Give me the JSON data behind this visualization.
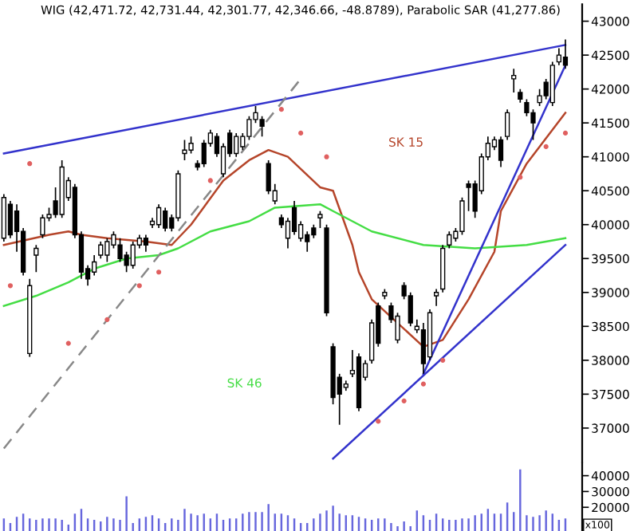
{
  "chart_data": [
    {
      "type": "candlestick",
      "title": "WIG (42,471.72, 42,731.44, 42,301.77, 42,346.66, -48.8789), Parabolic SAR (41,277.86)",
      "categories": [
        null,
        null,
        null,
        null,
        null,
        null,
        null,
        null,
        null,
        null,
        null,
        null,
        null,
        null,
        null,
        null,
        null,
        null,
        null,
        null,
        null,
        null,
        null,
        null,
        null,
        null,
        null,
        null,
        null,
        null,
        null,
        null,
        null,
        null,
        null,
        null,
        null,
        null,
        null,
        null,
        null,
        null,
        null,
        null,
        null,
        null,
        null,
        null,
        null,
        null,
        null,
        null,
        null,
        null,
        null,
        null,
        null,
        null,
        null,
        null,
        null,
        null,
        null,
        null,
        null,
        null,
        null,
        null,
        null,
        null,
        null,
        null,
        null,
        null,
        null,
        null,
        null,
        null,
        null,
        null,
        null,
        null,
        null,
        null,
        null,
        null,
        null,
        null
      ],
      "ohlc": [
        [
          39800,
          40450,
          39750,
          40400
        ],
        [
          40300,
          40350,
          39800,
          39850
        ],
        [
          40200,
          40300,
          39600,
          39900
        ],
        [
          39900,
          39950,
          39250,
          39300
        ],
        [
          38100,
          39200,
          38050,
          39100
        ],
        [
          39550,
          39700,
          39300,
          39650
        ],
        [
          39850,
          40150,
          39800,
          40100
        ],
        [
          40100,
          40250,
          40050,
          40150
        ],
        [
          40350,
          40550,
          40100,
          40150
        ],
        [
          40150,
          40950,
          40100,
          40850
        ],
        [
          40400,
          40700,
          40350,
          40650
        ],
        [
          40550,
          40600,
          39800,
          39850
        ],
        [
          39850,
          39900,
          39200,
          39300
        ],
        [
          39350,
          39400,
          39100,
          39200
        ],
        [
          39300,
          39550,
          39250,
          39450
        ],
        [
          39550,
          39750,
          39500,
          39700
        ],
        [
          39550,
          39800,
          39450,
          39750
        ],
        [
          39700,
          39900,
          39650,
          39850
        ],
        [
          39700,
          39800,
          39450,
          39500
        ],
        [
          39550,
          39600,
          39300,
          39400
        ],
        [
          39400,
          39750,
          39350,
          39700
        ],
        [
          39700,
          39850,
          39650,
          39800
        ],
        [
          39800,
          39850,
          39600,
          39700
        ],
        [
          40000,
          40100,
          39950,
          40050
        ],
        [
          40000,
          40300,
          39950,
          40250
        ],
        [
          40200,
          40250,
          39900,
          39950
        ],
        [
          40100,
          40150,
          39900,
          39950
        ],
        [
          40100,
          40800,
          40050,
          40750
        ],
        [
          41050,
          41250,
          40950,
          41100
        ],
        [
          41100,
          41300,
          41050,
          41200
        ],
        [
          40900,
          40950,
          40800,
          40850
        ],
        [
          41200,
          41250,
          40850,
          40900
        ],
        [
          41200,
          41400,
          41150,
          41350
        ],
        [
          41300,
          41350,
          41000,
          41050
        ],
        [
          40750,
          41200,
          40700,
          41150
        ],
        [
          41350,
          41400,
          41000,
          41050
        ],
        [
          41050,
          41350,
          41000,
          41300
        ],
        [
          41150,
          41350,
          41100,
          41300
        ],
        [
          41300,
          41600,
          41250,
          41550
        ],
        [
          41550,
          41750,
          41500,
          41650
        ],
        [
          41550,
          41600,
          41300,
          41450
        ],
        [
          40900,
          40950,
          40450,
          40500
        ],
        [
          40350,
          40600,
          40300,
          40500
        ],
        [
          40100,
          40150,
          39950,
          40000
        ],
        [
          39800,
          40100,
          39650,
          40050
        ],
        [
          40250,
          40350,
          39850,
          39900
        ],
        [
          39800,
          40050,
          39750,
          40000
        ],
        [
          39850,
          39900,
          39600,
          39750
        ],
        [
          39950,
          40000,
          39800,
          39850
        ],
        [
          40100,
          40200,
          39950,
          40150
        ],
        [
          39950,
          40000,
          38650,
          38700
        ],
        [
          38200,
          38250,
          37350,
          37450
        ],
        [
          37750,
          37800,
          37050,
          37500
        ],
        [
          37600,
          37700,
          37550,
          37650
        ],
        [
          37800,
          38150,
          37750,
          37850
        ],
        [
          38050,
          38100,
          37250,
          37300
        ],
        [
          37750,
          38000,
          37700,
          37950
        ],
        [
          38000,
          38600,
          37950,
          38550
        ],
        [
          38800,
          38850,
          38200,
          38250
        ],
        [
          38950,
          39050,
          38900,
          39000
        ],
        [
          38800,
          38850,
          38550,
          38600
        ],
        [
          38300,
          38700,
          38250,
          38650
        ],
        [
          39100,
          39150,
          38900,
          38950
        ],
        [
          38950,
          39000,
          38500,
          38550
        ],
        [
          38450,
          38600,
          38400,
          38500
        ],
        [
          38450,
          38550,
          37800,
          37950
        ],
        [
          38050,
          38750,
          38000,
          38700
        ],
        [
          38950,
          39050,
          38800,
          39000
        ],
        [
          39050,
          39700,
          39000,
          39650
        ],
        [
          39700,
          39900,
          39650,
          39850
        ],
        [
          39800,
          39950,
          39750,
          39900
        ],
        [
          39900,
          40400,
          39850,
          40350
        ],
        [
          40600,
          40650,
          40200,
          40550
        ],
        [
          40600,
          40650,
          40100,
          40200
        ],
        [
          40500,
          41050,
          40450,
          41000
        ],
        [
          41000,
          41300,
          40950,
          41200
        ],
        [
          41150,
          41300,
          41100,
          41250
        ],
        [
          41250,
          41300,
          40850,
          40950
        ],
        [
          41300,
          41700,
          41250,
          41650
        ],
        [
          42150,
          42300,
          41950,
          42200
        ],
        [
          41950,
          42000,
          41800,
          41850
        ],
        [
          41800,
          41850,
          41600,
          41650
        ],
        [
          41650,
          41700,
          41250,
          41500
        ],
        [
          41800,
          42000,
          41750,
          41900
        ],
        [
          42100,
          42150,
          41850,
          41900
        ],
        [
          41800,
          42400,
          41750,
          42350
        ],
        [
          42400,
          42600,
          42350,
          42500
        ],
        [
          42470,
          42730,
          42300,
          42350
        ]
      ],
      "series": [
        {
          "type": "line",
          "name": "SK 15",
          "color": "#b5452a",
          "values": [
            39700,
            null,
            null,
            null,
            null,
            null,
            null,
            39850,
            null,
            null,
            39900,
            null,
            39850,
            null,
            null,
            null,
            39800,
            null,
            null,
            null,
            null,
            null,
            39750,
            null,
            null,
            null,
            39700,
            null,
            null,
            40000,
            null,
            null,
            null,
            null,
            40650,
            null,
            null,
            null,
            40950,
            null,
            null,
            41100,
            null,
            null,
            41000,
            null,
            null,
            null,
            null,
            40550,
            null,
            40500,
            null,
            null,
            39700,
            39300,
            null,
            38900,
            null,
            null,
            null,
            38550,
            null,
            null,
            null,
            38200,
            null,
            null,
            38300,
            null,
            null,
            null,
            38900,
            null,
            null,
            null,
            39600,
            40200,
            null,
            null,
            null,
            40900,
            null,
            null,
            null,
            41400,
            null,
            41650
          ]
        },
        {
          "type": "line",
          "name": "SK 46",
          "color": "#44dd44",
          "values": [
            38800,
            null,
            null,
            null,
            null,
            38950,
            null,
            null,
            null,
            null,
            39150,
            null,
            null,
            null,
            39350,
            null,
            null,
            null,
            null,
            39500,
            null,
            null,
            null,
            null,
            39550,
            null,
            null,
            39650,
            null,
            null,
            null,
            null,
            39900,
            null,
            null,
            null,
            null,
            null,
            40050,
            null,
            null,
            null,
            40250,
            null,
            null,
            null,
            null,
            null,
            null,
            40300,
            null,
            40200,
            null,
            null,
            null,
            null,
            null,
            39900,
            null,
            null,
            null,
            null,
            null,
            null,
            null,
            39700,
            null,
            null,
            null,
            null,
            null,
            null,
            null,
            39650,
            null,
            null,
            null,
            null,
            null,
            null,
            null,
            39700,
            null,
            null,
            null,
            null,
            null,
            39800
          ]
        },
        {
          "type": "line",
          "color": "#3333cc",
          "values": [
            41050,
            null,
            null,
            null,
            null,
            null,
            null,
            null,
            null,
            null,
            null,
            null,
            null,
            null,
            null,
            null,
            null,
            null,
            null,
            null,
            null,
            null,
            null,
            null,
            null,
            null,
            null,
            null,
            null,
            null,
            null,
            null,
            null,
            null,
            null,
            null,
            null,
            null,
            null,
            null,
            null,
            null,
            null,
            null,
            null,
            null,
            null,
            null,
            null,
            null,
            null,
            null,
            null,
            null,
            null,
            null,
            null,
            null,
            null,
            null,
            null,
            null,
            null,
            null,
            null,
            null,
            null,
            null,
            null,
            null,
            null,
            null,
            null,
            null,
            null,
            null,
            null,
            null,
            null,
            null,
            null,
            null,
            null,
            null,
            null,
            null,
            null,
            42650
          ]
        },
        {
          "type": "line",
          "color": "#3333cc",
          "values": [
            null,
            null,
            null,
            null,
            null,
            null,
            null,
            null,
            null,
            null,
            null,
            null,
            null,
            null,
            null,
            null,
            null,
            null,
            null,
            null,
            null,
            null,
            null,
            null,
            null,
            null,
            null,
            null,
            null,
            null,
            null,
            null,
            null,
            null,
            null,
            null,
            null,
            null,
            null,
            null,
            null,
            null,
            null,
            null,
            null,
            null,
            null,
            null,
            null,
            null,
            null,
            null,
            null,
            null,
            null,
            null,
            null,
            null,
            null,
            null,
            null,
            null,
            null,
            null,
            null,
            37800,
            null,
            null,
            null,
            null,
            null,
            null,
            null,
            null,
            null,
            null,
            null,
            null,
            null,
            null,
            null,
            null,
            null,
            null,
            null,
            null,
            null,
            42350
          ]
        },
        {
          "type": "line",
          "color": "#3333cc",
          "values": [
            null,
            null,
            null,
            null,
            null,
            null,
            null,
            null,
            null,
            null,
            null,
            null,
            null,
            null,
            null,
            null,
            null,
            null,
            null,
            null,
            null,
            null,
            null,
            null,
            null,
            null,
            null,
            null,
            null,
            null,
            null,
            null,
            null,
            null,
            null,
            null,
            null,
            null,
            null,
            null,
            null,
            null,
            null,
            null,
            null,
            null,
            null,
            null,
            null,
            null,
            null,
            36550,
            null,
            null,
            null,
            null,
            null,
            null,
            null,
            null,
            null,
            null,
            null,
            null,
            null,
            null,
            null,
            null,
            null,
            null,
            null,
            null,
            null,
            null,
            null,
            null,
            null,
            null,
            null,
            null,
            null,
            null,
            null,
            null,
            null,
            null,
            null,
            39700
          ]
        },
        {
          "type": "line",
          "color": "#888888",
          "line_style": "dashed",
          "values": [
            36700,
            null,
            null,
            null,
            null,
            null,
            null,
            null,
            null,
            null,
            null,
            null,
            null,
            null,
            null,
            null,
            null,
            null,
            null,
            null,
            null,
            null,
            null,
            null,
            null,
            null,
            null,
            null,
            null,
            null,
            null,
            null,
            null,
            null,
            null,
            null,
            null,
            null,
            null,
            null,
            null,
            null,
            null,
            null,
            null,
            null,
            42150,
            null,
            null,
            null,
            null,
            null,
            null,
            null,
            null,
            null,
            null,
            null,
            null,
            null,
            null,
            null,
            null,
            null,
            null,
            null,
            null,
            null,
            null,
            null,
            null,
            null,
            null,
            null,
            null,
            null,
            null,
            null,
            null,
            null,
            null,
            null,
            null,
            null,
            null,
            null,
            null,
            null
          ]
        },
        {
          "type": "scatter",
          "color": "#e06060",
          "marker": "circle",
          "values": [
            null,
            39100,
            null,
            null,
            40900,
            null,
            null,
            null,
            null,
            null,
            38250,
            null,
            null,
            null,
            null,
            null,
            38600,
            null,
            null,
            null,
            null,
            39100,
            null,
            null,
            39300,
            null,
            null,
            null,
            null,
            null,
            null,
            null,
            40650,
            null,
            null,
            null,
            null,
            null,
            null,
            null,
            null,
            null,
            null,
            41700,
            null,
            null,
            41350,
            null,
            null,
            null,
            41000,
            null,
            null,
            null,
            null,
            null,
            null,
            null,
            37100,
            null,
            null,
            null,
            37400,
            null,
            null,
            37650,
            null,
            null,
            38000,
            null,
            null,
            null,
            null,
            null,
            null,
            null,
            null,
            null,
            null,
            null,
            40700,
            null,
            null,
            null,
            41150,
            null,
            null,
            41350
          ]
        }
      ],
      "ylim": [
        36500,
        43250
      ],
      "yticks": [
        37000,
        37500,
        38000,
        38500,
        39000,
        39500,
        40000,
        40500,
        41000,
        41500,
        42000,
        42500,
        43000
      ],
      "tick_labels": "y"
    },
    {
      "type": "bar",
      "ylabel": "x100",
      "color": "#6666dd",
      "categories": [
        null,
        null,
        null,
        null,
        null,
        null,
        null,
        null,
        null,
        null,
        null,
        null,
        null,
        null,
        null,
        null,
        null,
        null,
        null,
        null,
        null,
        null,
        null,
        null,
        null,
        null,
        null,
        null,
        null,
        null,
        null,
        null,
        null,
        null,
        null,
        null,
        null,
        null,
        null,
        null,
        null,
        null,
        null,
        null,
        null,
        null,
        null,
        null,
        null,
        null,
        null,
        null,
        null,
        null,
        null,
        null,
        null,
        null,
        null,
        null,
        null,
        null,
        null,
        null,
        null,
        null,
        null,
        null,
        null,
        null,
        null,
        null,
        null,
        null,
        null,
        null,
        null,
        null,
        null,
        null,
        null,
        null,
        null,
        null,
        null,
        null,
        null,
        null
      ],
      "values": [
        13000,
        10000,
        14000,
        16000,
        13000,
        12000,
        13000,
        13000,
        13000,
        12000,
        9000,
        16000,
        19000,
        13000,
        12000,
        11000,
        14000,
        13000,
        12000,
        27000,
        10000,
        13000,
        14000,
        15000,
        13000,
        10000,
        13000,
        12000,
        19000,
        16000,
        15000,
        16000,
        13000,
        16000,
        12000,
        13000,
        13000,
        16000,
        17000,
        17000,
        17000,
        22000,
        16000,
        16000,
        15000,
        13000,
        10000,
        10000,
        13000,
        16000,
        18000,
        21000,
        16000,
        15000,
        15000,
        14000,
        13000,
        12000,
        13000,
        13000,
        10000,
        8000,
        11000,
        8000,
        18000,
        15000,
        12000,
        16000,
        13000,
        12000,
        12000,
        13000,
        13000,
        15000,
        16000,
        19000,
        16000,
        16000,
        23000,
        17000,
        44000,
        15000,
        14000,
        15000,
        18000,
        16000,
        12000,
        13000
      ],
      "ylim": [
        5000,
        48000
      ],
      "yticks": [
        20000,
        30000,
        40000
      ],
      "tick_labels": "y"
    }
  ]
}
